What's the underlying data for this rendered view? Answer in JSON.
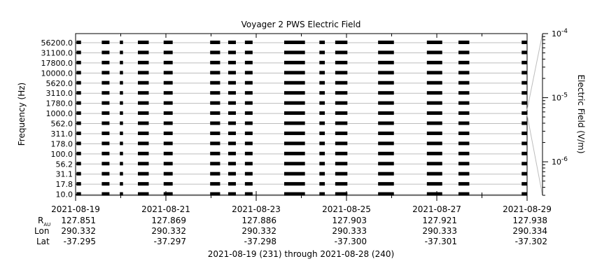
{
  "chart_data": {
    "type": "spectrogram",
    "title": "Voyager 2 PWS Electric Field",
    "ylabel": "Frequency (Hz)",
    "frequency_channels": [
      "56200.0",
      "31100.0",
      "17800.0",
      "10000.0",
      "5620.0",
      "3110.0",
      "1780.0",
      "1000.0",
      "562.0",
      "311.0",
      "178.0",
      "100.0",
      "56.2",
      "31.1",
      "17.8",
      "10.0"
    ],
    "x": {
      "start": "2021-08-19",
      "end": "2021-08-29",
      "tick_dates": [
        "2021-08-19",
        "2021-08-21",
        "2021-08-23",
        "2021-08-25",
        "2021-08-27",
        "2021-08-29"
      ],
      "minor_tick_days": [
        1,
        3,
        5,
        7,
        9
      ]
    },
    "colorbar": {
      "label": "Electric Field (V/m)",
      "scale": "log",
      "ticks": [
        {
          "value": 0.0001,
          "mantissa": "10",
          "exponent": "-4"
        },
        {
          "value": 1e-05,
          "mantissa": "10",
          "exponent": "-5"
        },
        {
          "value": 1e-06,
          "mantissa": "10",
          "exponent": "-6"
        }
      ],
      "range": [
        3e-07,
        0.0001
      ]
    },
    "data_segments_days": [
      [
        0.02,
        0.12
      ],
      [
        0.58,
        0.75
      ],
      [
        0.98,
        1.05
      ],
      [
        1.38,
        1.62
      ],
      [
        1.95,
        2.15
      ],
      [
        2.98,
        3.2
      ],
      [
        3.38,
        3.55
      ],
      [
        3.75,
        3.92
      ],
      [
        4.62,
        5.08
      ],
      [
        5.4,
        5.52
      ],
      [
        5.75,
        6.02
      ],
      [
        6.7,
        7.05
      ],
      [
        7.78,
        8.12
      ],
      [
        8.48,
        8.72
      ],
      [
        9.88,
        10.0
      ]
    ],
    "ephemeris": {
      "row_labels": {
        "r": "R",
        "r_sub": "AU",
        "lon": "Lon",
        "lat": "Lat"
      },
      "columns": [
        {
          "date": "2021-08-19",
          "r": "127.851",
          "lon": "290.332",
          "lat": "-37.295"
        },
        {
          "date": "2021-08-21",
          "r": "127.869",
          "lon": "290.332",
          "lat": "-37.297"
        },
        {
          "date": "2021-08-23",
          "r": "127.886",
          "lon": "290.332",
          "lat": "-37.298"
        },
        {
          "date": "2021-08-25",
          "r": "127.903",
          "lon": "290.333",
          "lat": "-37.300"
        },
        {
          "date": "2021-08-27",
          "r": "127.921",
          "lon": "290.333",
          "lat": "-37.301"
        },
        {
          "date": "2021-08-29",
          "r": "127.938",
          "lon": "290.334",
          "lat": "-37.302"
        }
      ]
    },
    "footer": "2021-08-19 (231) through 2021-08-28 (240)",
    "colors": {
      "signal": "#000000",
      "grid": "#bdbdbd",
      "axis": "#000000",
      "background": "#ffffff"
    }
  }
}
